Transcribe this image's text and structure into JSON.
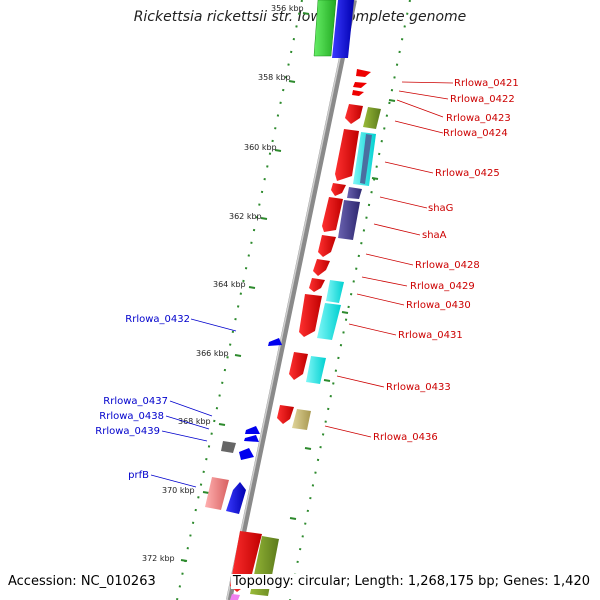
{
  "title": "Rickettsia rickettsii str. Iowa, complete genome",
  "accession_text": "Accession: NC_010263",
  "topology_text": "Topology: circular; Length: 1,268,175 bp; Genes: 1,420",
  "kbp_labels": [
    "356 kbp",
    "358 kbp",
    "360 kbp",
    "362 kbp",
    "364 kbp",
    "366 kbp",
    "368 kbp",
    "370 kbp",
    "372 kbp"
  ],
  "gene_labels_right": [
    "Rrlowa_0421",
    "Rrlowa_0422",
    "Rrlowa_0423",
    "Rrlowa_0424",
    "Rrlowa_0425",
    "shaG",
    "shaA",
    "Rrlowa_0428",
    "Rrlowa_0429",
    "Rrlowa_0430",
    "Rrlowa_0431",
    "Rrlowa_0433",
    "Rrlowa_0436"
  ],
  "gene_labels_left": [
    "Rrlowa_0432",
    "Rrlowa_0437",
    "Rrlowa_0438",
    "Rrlowa_0439",
    "prfB"
  ],
  "colors": {
    "forward_label": "#cc0000",
    "reverse_label": "#0000cc",
    "backbone": "#888888",
    "ticks": "#2d8a2d",
    "forward_gene": "#ee0000",
    "reverse_gene": "#0000ee",
    "cyan_feature": "#00e5e5",
    "navy_feature": "#4a3f8f",
    "olive_feature": "#7a9a2a",
    "pink_feature": "#f08a8a",
    "khaki_feature": "#c8b878",
    "grey_feature": "#777777",
    "green_feature": "#33cc33"
  }
}
